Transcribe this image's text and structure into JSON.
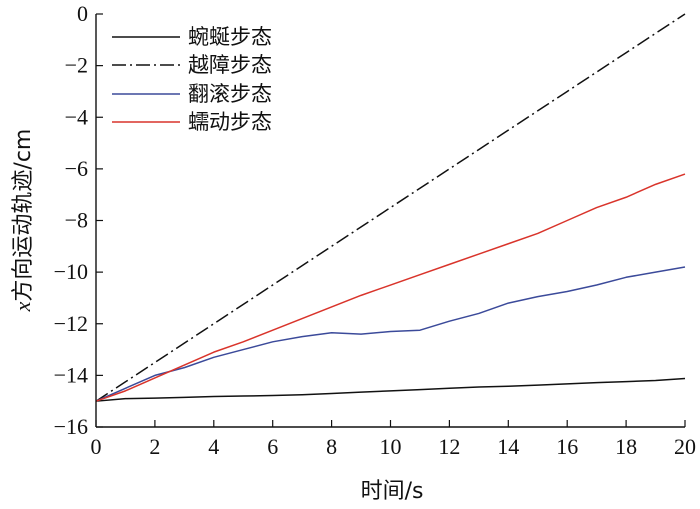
{
  "chart_data": {
    "type": "line",
    "xlabel": "时间/s",
    "ylabel_italic": "x",
    "ylabel_rest": "方向运动轨迹/cm",
    "xlim": [
      0,
      20
    ],
    "ylim": [
      -16,
      0
    ],
    "xticks": [
      0,
      2,
      4,
      6,
      8,
      10,
      12,
      14,
      16,
      18,
      20
    ],
    "yticks": [
      0,
      -2,
      -4,
      -6,
      -8,
      -10,
      -12,
      -14,
      -16
    ],
    "grid": false,
    "legend_position": "top-left",
    "series": [
      {
        "name": "蜿蜒步态",
        "color": "#111111",
        "dash": "solid",
        "x": [
          0,
          1,
          2,
          3,
          4,
          5,
          6,
          7,
          8,
          9,
          10,
          11,
          12,
          13,
          14,
          15,
          16,
          17,
          18,
          19,
          20
        ],
        "y": [
          -15.0,
          -14.9,
          -14.88,
          -14.85,
          -14.82,
          -14.8,
          -14.78,
          -14.75,
          -14.7,
          -14.65,
          -14.6,
          -14.55,
          -14.5,
          -14.45,
          -14.42,
          -14.38,
          -14.33,
          -14.28,
          -14.24,
          -14.2,
          -14.12
        ]
      },
      {
        "name": "越障步态",
        "color": "#111111",
        "dash": "dashdot",
        "x": [
          0,
          2,
          4,
          6,
          8,
          10,
          12,
          14,
          16,
          18,
          20
        ],
        "y": [
          -15.0,
          -13.5,
          -12.0,
          -10.5,
          -9.0,
          -7.5,
          -6.0,
          -4.5,
          -3.0,
          -1.5,
          0.0
        ]
      },
      {
        "name": "翻滚步态",
        "color": "#3b4a9a",
        "dash": "solid",
        "x": [
          0,
          1,
          2,
          3,
          4,
          5,
          6,
          7,
          8,
          9,
          10,
          11,
          12,
          13,
          14,
          15,
          16,
          17,
          18,
          19,
          20
        ],
        "y": [
          -15.0,
          -14.5,
          -14.0,
          -13.7,
          -13.3,
          -13.0,
          -12.7,
          -12.5,
          -12.35,
          -12.4,
          -12.3,
          -12.25,
          -11.9,
          -11.6,
          -11.2,
          -10.95,
          -10.75,
          -10.5,
          -10.2,
          -10.0,
          -9.8
        ]
      },
      {
        "name": "蠕动步态",
        "color": "#d9342b",
        "dash": "solid",
        "x": [
          0,
          1,
          2,
          3,
          4,
          5,
          6,
          7,
          8,
          9,
          10,
          11,
          12,
          13,
          14,
          15,
          16,
          17,
          18,
          19,
          20
        ],
        "y": [
          -15.0,
          -14.6,
          -14.1,
          -13.6,
          -13.1,
          -12.7,
          -12.25,
          -11.8,
          -11.35,
          -10.9,
          -10.5,
          -10.1,
          -9.7,
          -9.3,
          -8.9,
          -8.5,
          -8.0,
          -7.5,
          -7.1,
          -6.6,
          -6.2
        ]
      }
    ]
  }
}
